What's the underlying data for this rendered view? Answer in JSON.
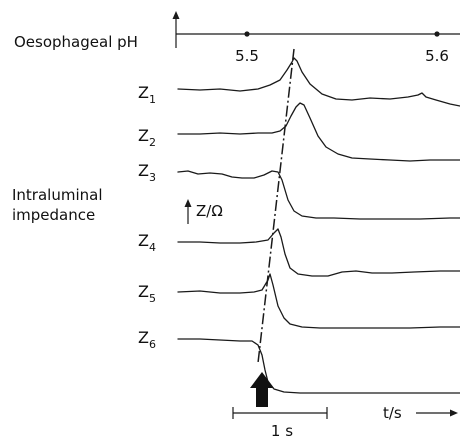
{
  "ph_channel": {
    "label": "Oesophageal pH",
    "ticks": [
      {
        "label": "5.5"
      },
      {
        "label": "5.6"
      }
    ]
  },
  "impedance": {
    "group_label_lines": [
      "Intraluminal",
      "impedance"
    ],
    "scale_label": "Z/Ω",
    "channels": [
      {
        "label": "Z",
        "sub": "1"
      },
      {
        "label": "Z",
        "sub": "2"
      },
      {
        "label": "Z",
        "sub": "3"
      },
      {
        "label": "Z",
        "sub": "4"
      },
      {
        "label": "Z",
        "sub": "5"
      },
      {
        "label": "Z",
        "sub": "6"
      }
    ]
  },
  "time_scale": {
    "label": "1 s"
  },
  "time_axis": {
    "label": "t/s"
  },
  "colors": {
    "ink": "#1a1a1a",
    "background": "#ffffff"
  },
  "icons": {
    "bolus_entry": "up-arrow-icon",
    "propagation": "dash-dot-line"
  }
}
